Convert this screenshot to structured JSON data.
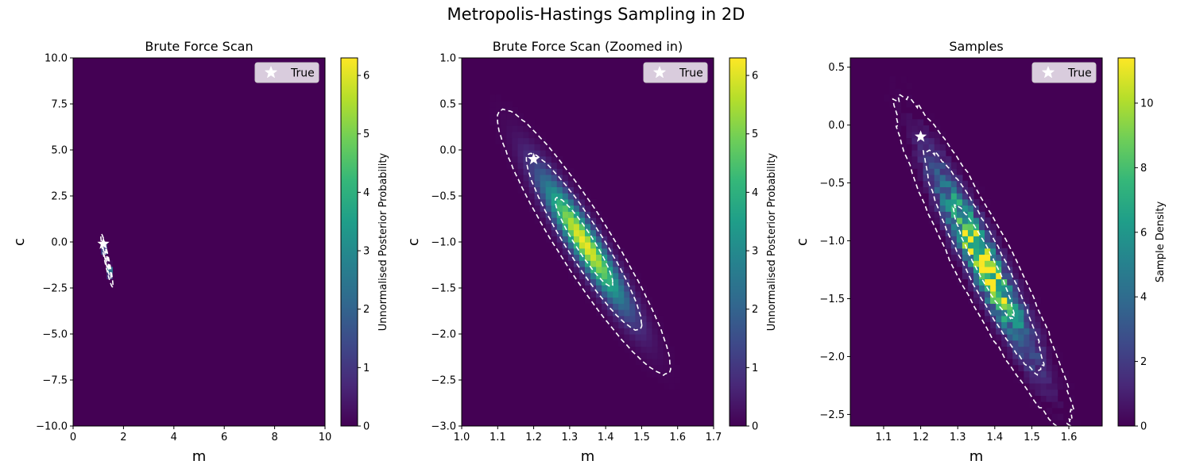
{
  "figure": {
    "suptitle": "Metropolis-Hastings Sampling in 2D"
  },
  "colors": {
    "cmap": [
      "#440154",
      "#482878",
      "#3e4989",
      "#31688e",
      "#26828e",
      "#1f9e89",
      "#35b779",
      "#6ece58",
      "#b5de2b",
      "#fde725"
    ],
    "contour": "#ffffff",
    "star": "#ffffff"
  },
  "chart_data": [
    {
      "type": "heatmap",
      "title": "Brute Force Scan",
      "xlabel": "m",
      "ylabel": "c",
      "xlim": [
        0,
        10
      ],
      "ylim": [
        -10,
        10
      ],
      "xticks": [
        0,
        2,
        4,
        6,
        8,
        10
      ],
      "xtick_labels": [
        "0",
        "2",
        "4",
        "6",
        "8",
        "10"
      ],
      "yticks": [
        -10,
        -7.5,
        -5,
        -2.5,
        0,
        2.5,
        5,
        7.5,
        10
      ],
      "ytick_labels": [
        "−10.0",
        "−7.5",
        "−5.0",
        "−2.5",
        "0.0",
        "2.5",
        "5.0",
        "7.5",
        "10.0"
      ],
      "colorbar": {
        "label": "Unnormalised Posterior Probability",
        "range": [
          0,
          6.3
        ],
        "ticks": [
          0,
          1,
          2,
          3,
          4,
          5,
          6
        ],
        "tick_labels": [
          "0",
          "1",
          "2",
          "3",
          "4",
          "5",
          "6"
        ]
      },
      "peak": {
        "m": 1.34,
        "c": -1.0,
        "value": 6.2
      },
      "posterior_cov": {
        "sm": 0.08,
        "sc": 0.48,
        "rho": -0.93
      },
      "contour_levels_sigma": [
        1,
        2,
        3
      ],
      "true_point": {
        "m": 1.2,
        "c": -0.1
      },
      "legend": {
        "label": "True",
        "position": "upper right"
      }
    },
    {
      "type": "heatmap",
      "title": "Brute Force Scan (Zoomed in)",
      "xlabel": "m",
      "ylabel": "c",
      "xlim": [
        1.0,
        1.7
      ],
      "ylim": [
        -3.0,
        1.0
      ],
      "xticks": [
        1.0,
        1.1,
        1.2,
        1.3,
        1.4,
        1.5,
        1.6,
        1.7
      ],
      "xtick_labels": [
        "1.0",
        "1.1",
        "1.2",
        "1.3",
        "1.4",
        "1.5",
        "1.6",
        "1.7"
      ],
      "yticks": [
        -3.0,
        -2.5,
        -2.0,
        -1.5,
        -1.0,
        -0.5,
        0.0,
        0.5,
        1.0
      ],
      "ytick_labels": [
        "−3.0",
        "−2.5",
        "−2.0",
        "−1.5",
        "−1.0",
        "−0.5",
        "0.0",
        "0.5",
        "1.0"
      ],
      "colorbar": {
        "label": "Unnormalised Posterior Probability",
        "range": [
          0,
          6.3
        ],
        "ticks": [
          0,
          1,
          2,
          3,
          4,
          5,
          6
        ],
        "tick_labels": [
          "0",
          "1",
          "2",
          "3",
          "4",
          "5",
          "6"
        ]
      },
      "peak": {
        "m": 1.34,
        "c": -1.0,
        "value": 6.2
      },
      "posterior_cov": {
        "sm": 0.08,
        "sc": 0.48,
        "rho": -0.93
      },
      "contour_levels_sigma": [
        1,
        2,
        3
      ],
      "true_point": {
        "m": 1.2,
        "c": -0.1
      },
      "legend": {
        "label": "True",
        "position": "upper right"
      }
    },
    {
      "type": "heatmap",
      "title": "Samples",
      "xlabel": "m",
      "ylabel": "c",
      "xlim": [
        1.01,
        1.69
      ],
      "ylim": [
        -2.6,
        0.58
      ],
      "xticks": [
        1.1,
        1.2,
        1.3,
        1.4,
        1.5,
        1.6
      ],
      "xtick_labels": [
        "1.1",
        "1.2",
        "1.3",
        "1.4",
        "1.5",
        "1.6"
      ],
      "yticks": [
        -2.5,
        -2.0,
        -1.5,
        -1.0,
        -0.5,
        0.0,
        0.5
      ],
      "ytick_labels": [
        "−2.5",
        "−2.0",
        "−1.5",
        "−1.0",
        "−0.5",
        "0.0",
        "0.5"
      ],
      "colorbar": {
        "label": "Sample Density",
        "range": [
          0,
          11.4
        ],
        "ticks": [
          0,
          2,
          4,
          6,
          8,
          10
        ],
        "tick_labels": [
          "0",
          "2",
          "4",
          "6",
          "8",
          "10"
        ]
      },
      "peak": {
        "m": 1.37,
        "c": -1.18,
        "value": 11.3
      },
      "posterior_cov": {
        "sm": 0.08,
        "sc": 0.48,
        "rho": -0.93
      },
      "contour_levels_sigma": [
        1,
        2,
        3
      ],
      "true_point": {
        "m": 1.2,
        "c": -0.1
      },
      "legend": {
        "label": "True",
        "position": "upper right"
      }
    }
  ]
}
